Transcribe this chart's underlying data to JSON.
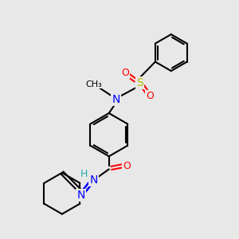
{
  "background_color": "#e8e8e8",
  "bond_color": "#000000",
  "atom_colors": {
    "N": "#0000ff",
    "O": "#ff0000",
    "S": "#b8b800",
    "H": "#20b2aa",
    "C": "#000000"
  },
  "figsize": [
    3.0,
    3.0
  ],
  "dpi": 100
}
